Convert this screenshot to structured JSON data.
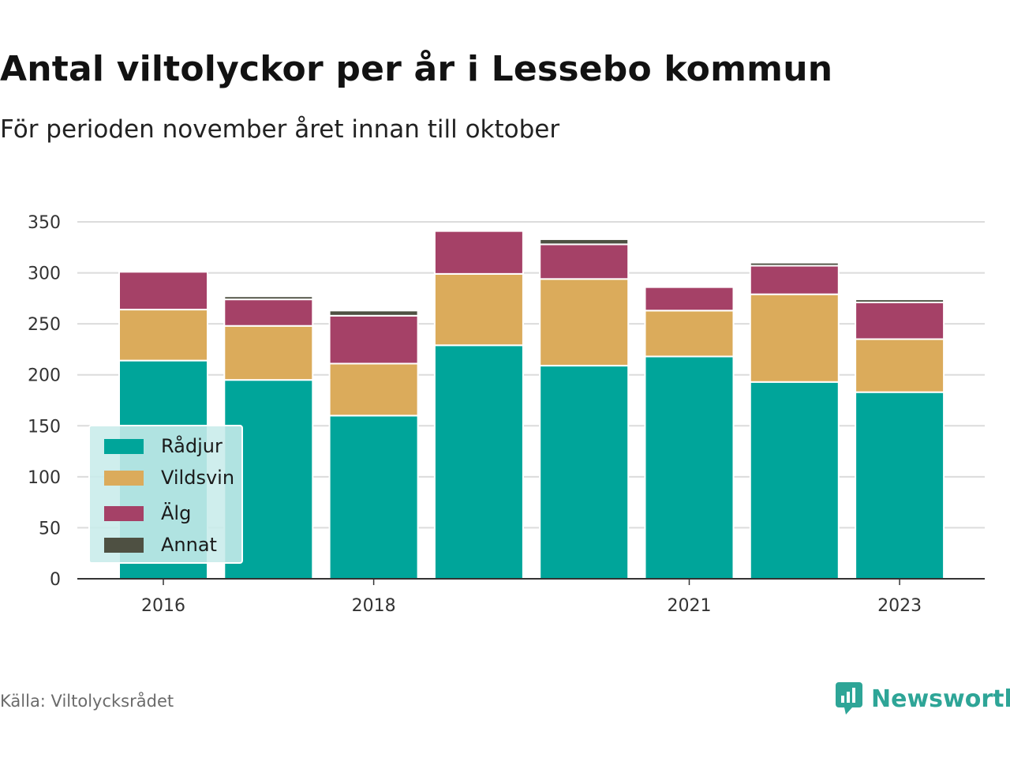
{
  "title": "Antal viltolyckor per år i Lessebo kommun",
  "subtitle": "För perioden november året innan till oktober",
  "source": "Källa: Viltolycksrådet",
  "brand": {
    "name": "Newsworthy",
    "icon": "newsworthy-logo-icon",
    "color": "#2ea597"
  },
  "legend": {
    "placement": "bottom-left"
  },
  "chart_data": {
    "type": "bar",
    "stacked": true,
    "categories": [
      "2016",
      "2017",
      "2018",
      "2019",
      "2020",
      "2021",
      "2022",
      "2023"
    ],
    "x_tick_labels": [
      "2016",
      "2018",
      "2021",
      "2023"
    ],
    "ylim": [
      0,
      350
    ],
    "yticks": [
      0,
      50,
      100,
      150,
      200,
      250,
      300,
      350
    ],
    "grid": true,
    "series": [
      {
        "name": "Rådjur",
        "color": "#00a59a",
        "values": [
          214,
          195,
          160,
          229,
          209,
          218,
          193,
          183
        ]
      },
      {
        "name": "Vildsvin",
        "color": "#dbab5b",
        "values": [
          50,
          53,
          51,
          70,
          85,
          45,
          86,
          52
        ]
      },
      {
        "name": "Älg",
        "color": "#a54167",
        "values": [
          37,
          26,
          47,
          42,
          34,
          23,
          28,
          36
        ]
      },
      {
        "name": "Annat",
        "color": "#4e5042",
        "values": [
          0,
          3,
          5,
          0,
          5,
          0,
          3,
          3
        ]
      }
    ]
  }
}
